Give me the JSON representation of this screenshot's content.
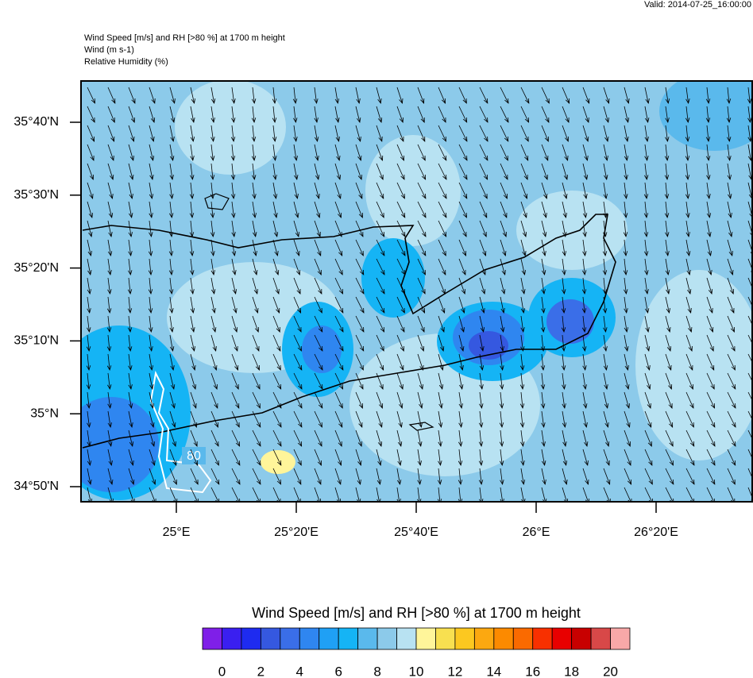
{
  "header": {
    "valid": "Valid: 2014-07-25_16:00:00",
    "title_lines": [
      "Wind Speed [m/s] and RH [>80 %] at 1700 m height",
      "Wind   (m s-1)",
      "Relative Humidity   (%)"
    ]
  },
  "map": {
    "lat_labels": [
      "35°40'N",
      "35°30'N",
      "35°20'N",
      "35°10'N",
      "35°N",
      "34°50'N"
    ],
    "lon_labels": [
      "25°E",
      "25°20'E",
      "25°40'E",
      "26°E",
      "26°20'E"
    ],
    "contour_label": "80"
  },
  "colorbar": {
    "title": "Wind Speed [m/s] and RH [>80 %] at 1700 m height",
    "colors": [
      "#7f1fe8",
      "#3a1ff0",
      "#1e2bf0",
      "#3558e0",
      "#3a6ee8",
      "#2f86f0",
      "#1fa0f5",
      "#15b4f5",
      "#5ab9ec",
      "#8ccaea",
      "#b8e2f2",
      "#fff59a",
      "#f8e050",
      "#fcc820",
      "#fca810",
      "#fc8a00",
      "#fa6a00",
      "#f83000",
      "#e80000",
      "#c80000",
      "#d84848",
      "#f8a8a8"
    ],
    "tick_labels": [
      "0",
      "2",
      "4",
      "6",
      "8",
      "10",
      "12",
      "14",
      "16",
      "18",
      "20"
    ]
  }
}
